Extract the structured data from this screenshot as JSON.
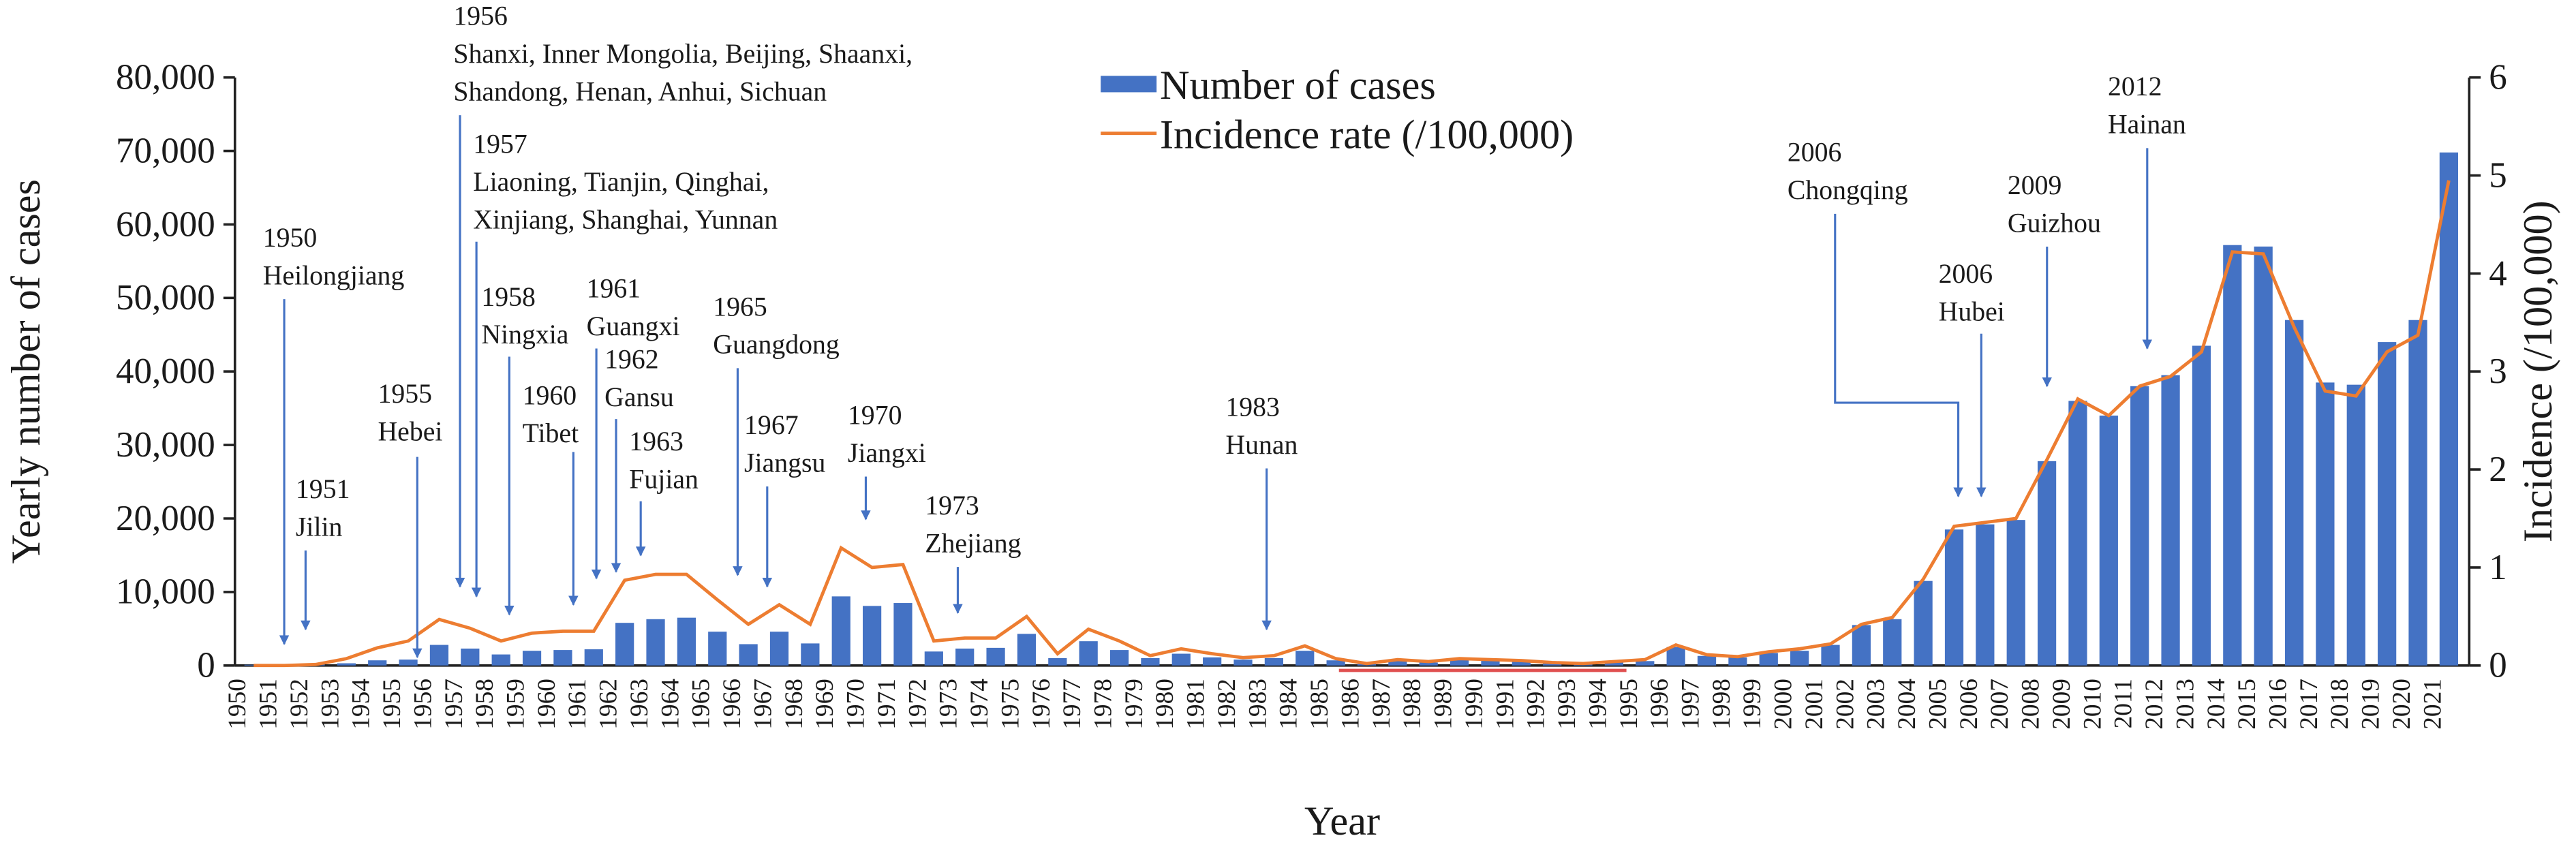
{
  "chart_data": {
    "type": "bar",
    "x_label": "Year",
    "y_label": "Yearly number of cases",
    "y2_label": "Incidence (/100,000)",
    "legend": "top",
    "categories": [
      "1950",
      "1951",
      "1952",
      "1953",
      "1954",
      "1955",
      "1956",
      "1957",
      "1958",
      "1959",
      "1960",
      "1961",
      "1962",
      "1963",
      "1964",
      "1965",
      "1966",
      "1967",
      "1968",
      "1969",
      "1970",
      "1971",
      "1972",
      "1973",
      "1974",
      "1975",
      "1976",
      "1977",
      "1978",
      "1979",
      "1980",
      "1981",
      "1982",
      "1983",
      "1984",
      "1985",
      "1986",
      "1987",
      "1988",
      "1989",
      "1990",
      "1991",
      "1992",
      "1993",
      "1994",
      "1995",
      "1996",
      "1997",
      "1998",
      "1999",
      "2000",
      "2001",
      "2002",
      "2003",
      "2004",
      "2005",
      "2006",
      "2007",
      "2008",
      "2009",
      "2010",
      "2011",
      "2012",
      "2013",
      "2014",
      "2015",
      "2016",
      "2017",
      "2018",
      "2019",
      "2020",
      "2021"
    ],
    "series": [
      {
        "name": "Number of cases",
        "type": "bar",
        "color": "#4472c4",
        "values": [
          100,
          200,
          300,
          300,
          700,
          800,
          2800,
          2300,
          1500,
          2000,
          2100,
          2200,
          5800,
          6300,
          6500,
          4600,
          2900,
          4600,
          3000,
          9400,
          8100,
          8500,
          1900,
          2300,
          2400,
          4300,
          1000,
          3300,
          2100,
          1000,
          1600,
          1100,
          800,
          1000,
          2000,
          700,
          200,
          600,
          400,
          800,
          700,
          600,
          300,
          200,
          400,
          600,
          2500,
          1300,
          1100,
          1700,
          2000,
          2800,
          5500,
          6300,
          11500,
          18500,
          19200,
          19800,
          27800,
          36000,
          34000,
          38000,
          39500,
          43500,
          57200,
          57000,
          47000,
          38500,
          38200,
          44000,
          47000,
          69800
        ]
      },
      {
        "name": "Incidence rate (/100,000)",
        "type": "line",
        "axis": "y2",
        "color": "#ed7d31",
        "values": [
          0,
          0,
          0.01,
          0.07,
          0.18,
          0.25,
          0.47,
          0.38,
          0.25,
          0.33,
          0.35,
          0.35,
          0.87,
          0.93,
          0.93,
          0.67,
          0.42,
          0.62,
          0.42,
          1.2,
          1.0,
          1.03,
          0.25,
          0.28,
          0.28,
          0.5,
          0.12,
          0.37,
          0.25,
          0.1,
          0.17,
          0.12,
          0.08,
          0.1,
          0.2,
          0.07,
          0.02,
          0.06,
          0.04,
          0.07,
          0.06,
          0.05,
          0.03,
          0.02,
          0.04,
          0.06,
          0.21,
          0.11,
          0.09,
          0.14,
          0.17,
          0.22,
          0.42,
          0.49,
          0.88,
          1.42,
          1.46,
          1.5,
          2.1,
          2.72,
          2.55,
          2.85,
          2.95,
          3.2,
          4.22,
          4.2,
          3.45,
          2.8,
          2.75,
          3.2,
          3.37,
          4.95
        ]
      }
    ],
    "ylim": [
      0,
      80000
    ],
    "yticks": [
      0,
      {
        "value": 10000,
        "label": "10,000"
      },
      {
        "value": 20000,
        "label": "20,000"
      },
      {
        "value": 30000,
        "label": "30,000"
      },
      {
        "value": 40000,
        "label": "40,000"
      },
      {
        "value": 50000,
        "label": "50,000"
      },
      {
        "value": 60000,
        "label": "60,000"
      },
      {
        "value": 70000,
        "label": "70,000"
      },
      {
        "value": 80000,
        "label": "80,000"
      }
    ],
    "y2lim": [
      0,
      6
    ],
    "y2ticks": [
      0,
      1,
      2,
      3,
      4,
      5,
      6
    ],
    "grid": false,
    "annotations": [
      {
        "lines": [
          "1950",
          "Heilongjiang"
        ]
      },
      {
        "lines": [
          "1951",
          "Jilin"
        ]
      },
      {
        "lines": [
          "1955",
          "Hebei"
        ]
      },
      {
        "lines": [
          "1956",
          "Shanxi, Inner Mongolia, Beijing, Shaanxi,",
          "Shandong, Henan, Anhui, Sichuan"
        ]
      },
      {
        "lines": [
          "1957",
          "Liaoning, Tianjin, Qinghai,",
          "Xinjiang, Shanghai, Yunnan"
        ]
      },
      {
        "lines": [
          "1958",
          "Ningxia"
        ]
      },
      {
        "lines": [
          "1960",
          "Tibet"
        ]
      },
      {
        "lines": [
          "1961",
          "Guangxi"
        ]
      },
      {
        "lines": [
          "1962",
          "Gansu"
        ]
      },
      {
        "lines": [
          "1963",
          "Fujian"
        ]
      },
      {
        "lines": [
          "1965",
          "Guangdong"
        ]
      },
      {
        "lines": [
          "1967",
          "Jiangsu"
        ]
      },
      {
        "lines": [
          "1970",
          "Jiangxi"
        ]
      },
      {
        "lines": [
          "1973",
          "Zhejiang"
        ]
      },
      {
        "lines": [
          "1983",
          "Hunan"
        ]
      },
      {
        "lines": [
          "2006",
          "Chongqing"
        ]
      },
      {
        "lines": [
          "2006",
          "Hubei"
        ]
      },
      {
        "lines": [
          "2009",
          "Guizhou"
        ]
      },
      {
        "lines": [
          "2012",
          "Hainan"
        ]
      }
    ]
  }
}
